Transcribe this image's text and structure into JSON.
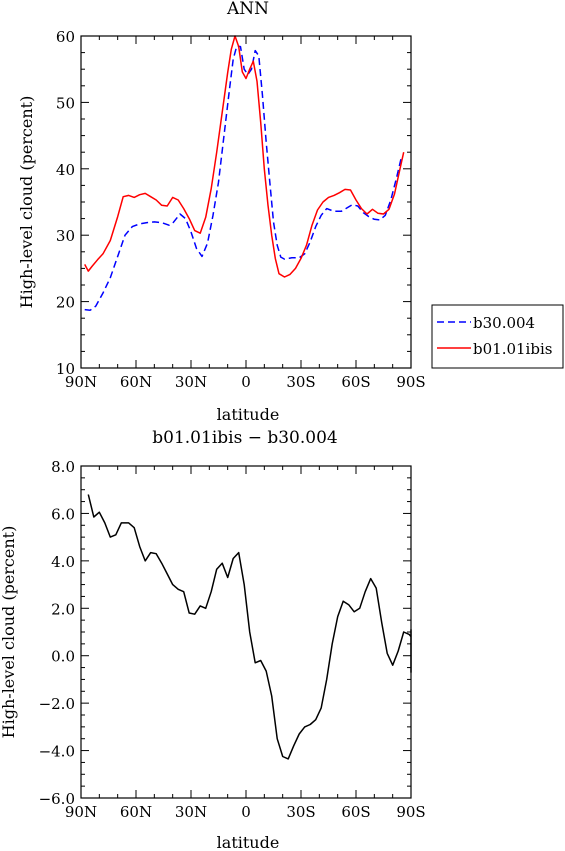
{
  "chart_data": [
    {
      "type": "line",
      "title": "ANN",
      "xlabel": "latitude",
      "ylabel": "High-level cloud (percent)",
      "xlim": [
        90,
        -90
      ],
      "ylim": [
        10,
        60
      ],
      "x_ticks": [
        90,
        60,
        30,
        0,
        -30,
        -60,
        -90
      ],
      "x_tick_labels": [
        "90N",
        "60N",
        "30N",
        "0",
        "30S",
        "60S",
        "90S"
      ],
      "y_ticks": [
        10,
        20,
        30,
        40,
        50,
        60
      ],
      "y_tick_labels": [
        "10",
        "20",
        "30",
        "40",
        "50",
        "60"
      ],
      "legend": "outside-right",
      "series": [
        {
          "name": "b30.004",
          "color": "#0000ff",
          "dash": "dashed",
          "points": [
            [
              88,
              18.8
            ],
            [
              85,
              18.7
            ],
            [
              82,
              19.3
            ],
            [
              78,
              21.3
            ],
            [
              74,
              23.6
            ],
            [
              70,
              26.8
            ],
            [
              66,
              30.0
            ],
            [
              62,
              31.3
            ],
            [
              58,
              31.7
            ],
            [
              54,
              31.9
            ],
            [
              50,
              32.0
            ],
            [
              46,
              31.9
            ],
            [
              42,
              31.5
            ],
            [
              40,
              31.8
            ],
            [
              36,
              33.2
            ],
            [
              33,
              32.5
            ],
            [
              30,
              30.5
            ],
            [
              27,
              28.0
            ],
            [
              24,
              26.8
            ],
            [
              21,
              28.8
            ],
            [
              18,
              33.0
            ],
            [
              15,
              38.0
            ],
            [
              12,
              45.0
            ],
            [
              9,
              52.0
            ],
            [
              7,
              56.5
            ],
            [
              5,
              58.5
            ],
            [
              3,
              58.4
            ],
            [
              1,
              55.0
            ],
            [
              -1,
              54.2
            ],
            [
              -3,
              55.0
            ],
            [
              -5,
              57.8
            ],
            [
              -7,
              57.0
            ],
            [
              -9,
              51.0
            ],
            [
              -11,
              44.0
            ],
            [
              -13,
              38.0
            ],
            [
              -15,
              32.0
            ],
            [
              -17,
              28.5
            ],
            [
              -19,
              26.7
            ],
            [
              -21,
              26.4
            ],
            [
              -25,
              26.6
            ],
            [
              -29,
              26.6
            ],
            [
              -32,
              27.2
            ],
            [
              -35,
              29.0
            ],
            [
              -38,
              31.3
            ],
            [
              -41,
              33.0
            ],
            [
              -44,
              34.0
            ],
            [
              -48,
              33.6
            ],
            [
              -52,
              33.6
            ],
            [
              -55,
              34.1
            ],
            [
              -58,
              34.6
            ],
            [
              -61,
              34.4
            ],
            [
              -64,
              33.4
            ],
            [
              -67,
              32.8
            ],
            [
              -70,
              32.4
            ],
            [
              -73,
              32.3
            ],
            [
              -76,
              33.0
            ],
            [
              -79,
              35.3
            ],
            [
              -82,
              38.5
            ],
            [
              -85,
              42.0
            ]
          ]
        },
        {
          "name": "b01.01ibis",
          "color": "#ff0000",
          "dash": "solid",
          "points": [
            [
              88,
              25.6
            ],
            [
              86,
              24.6
            ],
            [
              84,
              25.3
            ],
            [
              81,
              26.3
            ],
            [
              78,
              27.2
            ],
            [
              74,
              29.2
            ],
            [
              70,
              32.8
            ],
            [
              67,
              35.8
            ],
            [
              64,
              36.0
            ],
            [
              61,
              35.7
            ],
            [
              58,
              36.1
            ],
            [
              55,
              36.3
            ],
            [
              52,
              35.8
            ],
            [
              49,
              35.3
            ],
            [
              46,
              34.5
            ],
            [
              43,
              34.4
            ],
            [
              40,
              35.7
            ],
            [
              37,
              35.3
            ],
            [
              34,
              34.0
            ],
            [
              31,
              32.5
            ],
            [
              28,
              30.7
            ],
            [
              25,
              30.3
            ],
            [
              22,
              32.7
            ],
            [
              19,
              37.0
            ],
            [
              16,
              42.5
            ],
            [
              13,
              48.5
            ],
            [
              10,
              54.5
            ],
            [
              8,
              58.0
            ],
            [
              6,
              60.0
            ],
            [
              4,
              58.4
            ],
            [
              2,
              54.6
            ],
            [
              0,
              53.6
            ],
            [
              -2,
              55.0
            ],
            [
              -4,
              56.2
            ],
            [
              -6,
              53.2
            ],
            [
              -8,
              47.0
            ],
            [
              -10,
              40.0
            ],
            [
              -12,
              34.5
            ],
            [
              -14,
              30.0
            ],
            [
              -16,
              26.5
            ],
            [
              -18,
              24.2
            ],
            [
              -21,
              23.7
            ],
            [
              -24,
              24.1
            ],
            [
              -27,
              25.0
            ],
            [
              -30,
              26.5
            ],
            [
              -33,
              28.5
            ],
            [
              -36,
              31.5
            ],
            [
              -39,
              33.8
            ],
            [
              -42,
              35.0
            ],
            [
              -45,
              35.7
            ],
            [
              -48,
              36.0
            ],
            [
              -51,
              36.4
            ],
            [
              -54,
              36.9
            ],
            [
              -57,
              36.8
            ],
            [
              -60,
              35.3
            ],
            [
              -63,
              34.0
            ],
            [
              -66,
              33.2
            ],
            [
              -69,
              33.9
            ],
            [
              -72,
              33.3
            ],
            [
              -75,
              33.2
            ],
            [
              -78,
              33.9
            ],
            [
              -81,
              36.2
            ],
            [
              -84,
              40.0
            ],
            [
              -86,
              42.5
            ]
          ]
        }
      ]
    },
    {
      "type": "line",
      "title": "b01.01ibis − b30.004",
      "xlabel": "latitude",
      "ylabel": "High-level cloud (percent)",
      "xlim": [
        90,
        -90
      ],
      "ylim": [
        -6,
        8
      ],
      "x_ticks": [
        90,
        60,
        30,
        0,
        -30,
        -60,
        -90
      ],
      "x_tick_labels": [
        "90N",
        "60N",
        "30N",
        "0",
        "30S",
        "60S",
        "90S"
      ],
      "y_ticks": [
        -6,
        -4,
        -2,
        0,
        2,
        4,
        6,
        8
      ],
      "y_tick_labels": [
        "−6.0",
        "−4.0",
        "−2.0",
        "0.0",
        "2.0",
        "4.0",
        "6.0",
        "8.0"
      ],
      "series": [
        {
          "color": "#000000",
          "dash": "solid",
          "points": [
            [
              86,
              6.8
            ],
            [
              83,
              5.85
            ],
            [
              80,
              6.05
            ],
            [
              77,
              5.6
            ],
            [
              74,
              5.0
            ],
            [
              71,
              5.1
            ],
            [
              68,
              5.6
            ],
            [
              64,
              5.6
            ],
            [
              61,
              5.4
            ],
            [
              58,
              4.6
            ],
            [
              55,
              4.0
            ],
            [
              52,
              4.35
            ],
            [
              49,
              4.3
            ],
            [
              46,
              3.9
            ],
            [
              43,
              3.45
            ],
            [
              40,
              3.0
            ],
            [
              37,
              2.8
            ],
            [
              34,
              2.7
            ],
            [
              31,
              1.8
            ],
            [
              28,
              1.75
            ],
            [
              25,
              2.1
            ],
            [
              22,
              2.0
            ],
            [
              19,
              2.7
            ],
            [
              16,
              3.65
            ],
            [
              13,
              3.9
            ],
            [
              10,
              3.3
            ],
            [
              7,
              4.1
            ],
            [
              4,
              4.35
            ],
            [
              1,
              3.0
            ],
            [
              -2,
              1.0
            ],
            [
              -5,
              -0.3
            ],
            [
              -8,
              -0.2
            ],
            [
              -11,
              -0.65
            ],
            [
              -14,
              -1.7
            ],
            [
              -17,
              -3.5
            ],
            [
              -20,
              -4.25
            ],
            [
              -23,
              -4.35
            ],
            [
              -26,
              -3.8
            ],
            [
              -29,
              -3.3
            ],
            [
              -32,
              -3.0
            ],
            [
              -35,
              -2.9
            ],
            [
              -38,
              -2.7
            ],
            [
              -41,
              -2.2
            ],
            [
              -44,
              -1.0
            ],
            [
              -47,
              0.5
            ],
            [
              -50,
              1.65
            ],
            [
              -53,
              2.3
            ],
            [
              -56,
              2.15
            ],
            [
              -59,
              1.85
            ],
            [
              -62,
              2.0
            ],
            [
              -65,
              2.7
            ],
            [
              -68,
              3.25
            ],
            [
              -71,
              2.85
            ],
            [
              -74,
              1.4
            ],
            [
              -77,
              0.1
            ],
            [
              -80,
              -0.4
            ],
            [
              -83,
              0.2
            ],
            [
              -86,
              1.0
            ],
            [
              -89,
              0.9
            ],
            [
              -92,
              0.8
            ],
            [
              -95,
              1.1
            ],
            [
              -98,
              0.6
            ],
            [
              -101,
              -0.7
            ],
            [
              -104,
              0.8
            ]
          ]
        }
      ]
    }
  ]
}
